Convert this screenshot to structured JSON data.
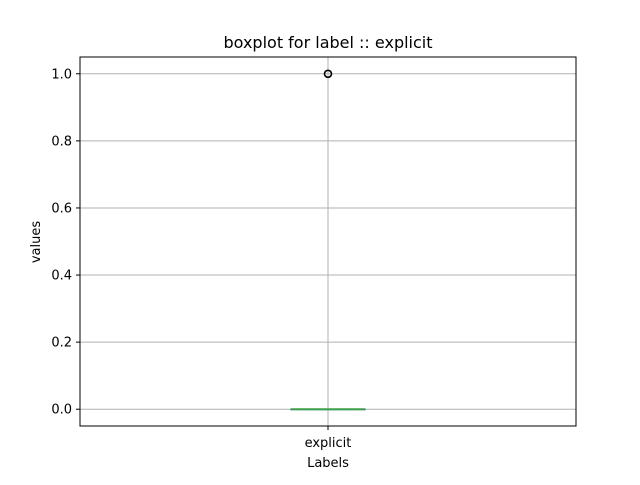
{
  "chart_data": {
    "type": "boxplot",
    "title": "boxplot for label :: explicit",
    "xlabel": "Labels",
    "ylabel": "values",
    "categories": [
      "explicit"
    ],
    "ylim": [
      -0.05,
      1.05
    ],
    "yticks": [
      0.0,
      0.2,
      0.4,
      0.6,
      0.8,
      1.0
    ],
    "ytick_labels": [
      "0.0",
      "0.2",
      "0.4",
      "0.6",
      "0.8",
      "1.0"
    ],
    "grid": true,
    "boxes": [
      {
        "category": "explicit",
        "whislo": 0.0,
        "q1": 0.0,
        "median": 0.0,
        "q3": 0.0,
        "whishi": 0.0,
        "fliers": [
          1.0
        ]
      }
    ],
    "colors": {
      "median": "#3f9f49",
      "box": "#1f77b4",
      "grid": "#b0b0b0",
      "axis": "#000000"
    }
  }
}
